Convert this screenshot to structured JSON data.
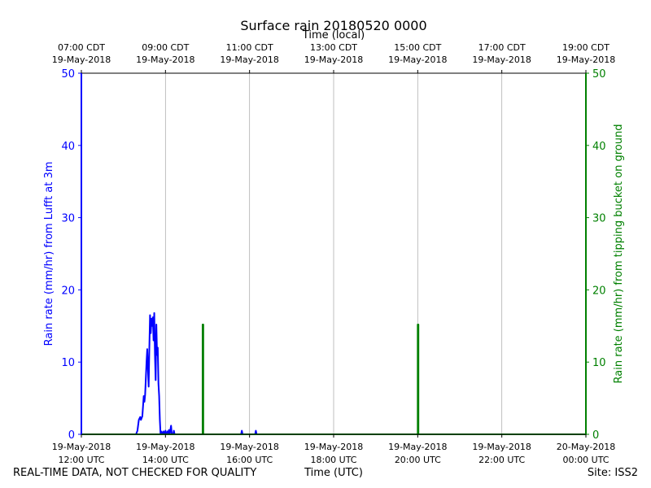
{
  "chart_data": {
    "type": "line",
    "title": "Surface rain 20180520 0000",
    "top_xlabel": "Time (local)",
    "xlabel": "Time (UTC)",
    "ylabel_left": "Rain rate (mm/hr) from Lufft at 3m",
    "ylabel_right": "Rain rate (mm/hr) from tipping bucket on ground",
    "xlim": [
      "2018-05-19 12:00",
      "2018-05-20 00:00"
    ],
    "ylim_left": [
      0,
      50
    ],
    "ylim_right": [
      0,
      50
    ],
    "left_axis_color": "#0000ff",
    "right_axis_color": "#008000",
    "grid_x": true,
    "grid_y": false,
    "yticks": [
      "0",
      "10",
      "20",
      "30",
      "40",
      "50"
    ],
    "bottom_ticks": [
      {
        "t": "2018-05-19 12:00",
        "date": "19-May-2018",
        "time": "12:00 UTC"
      },
      {
        "t": "2018-05-19 14:00",
        "date": "19-May-2018",
        "time": "14:00 UTC"
      },
      {
        "t": "2018-05-19 16:00",
        "date": "19-May-2018",
        "time": "16:00 UTC"
      },
      {
        "t": "2018-05-19 18:00",
        "date": "19-May-2018",
        "time": "18:00 UTC"
      },
      {
        "t": "2018-05-19 20:00",
        "date": "19-May-2018",
        "time": "20:00 UTC"
      },
      {
        "t": "2018-05-19 22:00",
        "date": "19-May-2018",
        "time": "22:00 UTC"
      },
      {
        "t": "2018-05-20 00:00",
        "date": "20-May-2018",
        "time": "00:00 UTC"
      }
    ],
    "top_ticks": [
      {
        "t": "2018-05-19 12:00",
        "time": "07:00 CDT",
        "date": "19-May-2018"
      },
      {
        "t": "2018-05-19 14:00",
        "time": "09:00 CDT",
        "date": "19-May-2018"
      },
      {
        "t": "2018-05-19 16:00",
        "time": "11:00 CDT",
        "date": "19-May-2018"
      },
      {
        "t": "2018-05-19 18:00",
        "time": "13:00 CDT",
        "date": "19-May-2018"
      },
      {
        "t": "2018-05-19 20:00",
        "time": "15:00 CDT",
        "date": "19-May-2018"
      },
      {
        "t": "2018-05-19 22:00",
        "time": "17:00 CDT",
        "date": "19-May-2018"
      },
      {
        "t": "2018-05-20 00:00",
        "time": "19:00 CDT",
        "date": "19-May-2018"
      }
    ],
    "series": [
      {
        "axis": "left",
        "color": "#0000ff",
        "points": [
          [
            "2018-05-19 12:00",
            50
          ],
          [
            "2018-05-19 12:00",
            0
          ],
          [
            "2018-05-19 13:18",
            0
          ],
          [
            "2018-05-19 13:20",
            0.5
          ],
          [
            "2018-05-19 13:22",
            2
          ],
          [
            "2018-05-19 13:24",
            2.4
          ],
          [
            "2018-05-19 13:25",
            2
          ],
          [
            "2018-05-19 13:27",
            2.5
          ],
          [
            "2018-05-19 13:29",
            5.3
          ],
          [
            "2018-05-19 13:30",
            4.5
          ],
          [
            "2018-05-19 13:31",
            5.5
          ],
          [
            "2018-05-19 13:33",
            10
          ],
          [
            "2018-05-19 13:34",
            11.8
          ],
          [
            "2018-05-19 13:35",
            9
          ],
          [
            "2018-05-19 13:36",
            6.6
          ],
          [
            "2018-05-19 13:37",
            12
          ],
          [
            "2018-05-19 13:38",
            16.5
          ],
          [
            "2018-05-19 13:39",
            14
          ],
          [
            "2018-05-19 13:40",
            16
          ],
          [
            "2018-05-19 13:41",
            15
          ],
          [
            "2018-05-19 13:42",
            16.2
          ],
          [
            "2018-05-19 13:43",
            13
          ],
          [
            "2018-05-19 13:44",
            16.8
          ],
          [
            "2018-05-19 13:45",
            11
          ],
          [
            "2018-05-19 13:46",
            7.5
          ],
          [
            "2018-05-19 13:47",
            15.2
          ],
          [
            "2018-05-19 13:48",
            11
          ],
          [
            "2018-05-19 13:49",
            12
          ],
          [
            "2018-05-19 13:50",
            7
          ],
          [
            "2018-05-19 13:51",
            5.3
          ],
          [
            "2018-05-19 13:52",
            2
          ],
          [
            "2018-05-19 13:53",
            0
          ],
          [
            "2018-05-19 13:54",
            0.4
          ],
          [
            "2018-05-19 13:55",
            0
          ],
          [
            "2018-05-19 13:57",
            0.4
          ],
          [
            "2018-05-19 13:58",
            0
          ],
          [
            "2018-05-19 14:00",
            0.5
          ],
          [
            "2018-05-19 14:01",
            0
          ],
          [
            "2018-05-19 14:03",
            0.4
          ],
          [
            "2018-05-19 14:04",
            0.2
          ],
          [
            "2018-05-19 14:05",
            0.6
          ],
          [
            "2018-05-19 14:06",
            0
          ],
          [
            "2018-05-19 14:07",
            0.6
          ],
          [
            "2018-05-19 14:08",
            1.2
          ],
          [
            "2018-05-19 14:09",
            0
          ],
          [
            "2018-05-19 14:11",
            0
          ],
          [
            "2018-05-19 14:12",
            0.5
          ],
          [
            "2018-05-19 14:13",
            0
          ],
          [
            "2018-05-19 15:48",
            0
          ],
          [
            "2018-05-19 15:49",
            0.5
          ],
          [
            "2018-05-19 15:50",
            0
          ],
          [
            "2018-05-19 16:08",
            0
          ],
          [
            "2018-05-19 16:09",
            0.5
          ],
          [
            "2018-05-19 16:10",
            0
          ],
          [
            "2018-05-20 00:00",
            0
          ]
        ]
      },
      {
        "axis": "right",
        "color": "#008000",
        "points": [
          [
            "2018-05-19 12:00",
            0
          ],
          [
            "2018-05-19 14:53",
            0
          ],
          [
            "2018-05-19 14:53",
            15.2
          ],
          [
            "2018-05-19 14:54",
            15.2
          ],
          [
            "2018-05-19 14:54",
            0
          ],
          [
            "2018-05-19 20:00",
            0
          ],
          [
            "2018-05-19 20:00",
            15.2
          ],
          [
            "2018-05-19 20:01",
            15.2
          ],
          [
            "2018-05-19 20:01",
            0
          ],
          [
            "2018-05-20 00:00",
            0
          ],
          [
            "2018-05-20 00:00",
            50
          ]
        ]
      }
    ]
  },
  "footer": {
    "left": "REAL-TIME DATA, NOT CHECKED FOR QUALITY",
    "center": "Time (UTC)",
    "right": "Site: ISS2"
  }
}
